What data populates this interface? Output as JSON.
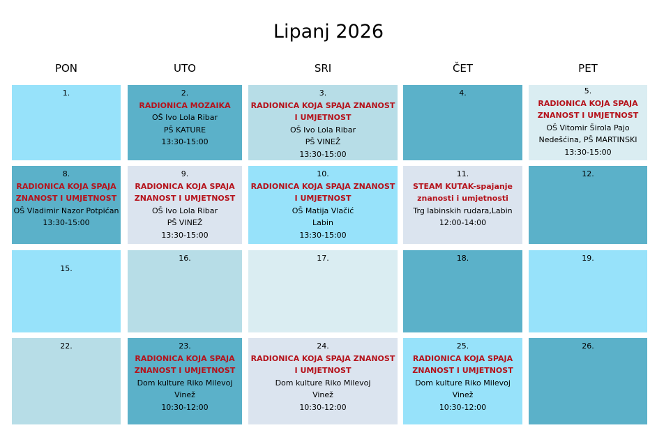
{
  "title": "Lipanj 2026",
  "colors": {
    "light_cyan": "#97e2fa",
    "teal": "#5bb1c9",
    "pale_blue": "#b7dde7",
    "lightest": "#daedf2",
    "gray_blue": "#dbe4ef",
    "event_title": "#b5121b"
  },
  "days": [
    "PON",
    "UTO",
    "SRI",
    "ČET",
    "PET"
  ],
  "weeks": [
    [
      {
        "num": "1.",
        "title": "",
        "lines": []
      },
      {
        "num": "2.",
        "title": "RADIONICA MOZAIKA",
        "lines": [
          "OŠ Ivo Lola Ribar",
          "PŠ KATURE",
          "13:30-15:00"
        ]
      },
      {
        "num": "3.",
        "title": "RADIONICA KOJA SPAJA ZNANOST I UMJETNOST",
        "lines": [
          "OŠ Ivo Lola Ribar",
          "PŠ VINEŽ",
          "13:30-15:00"
        ]
      },
      {
        "num": "4.",
        "title": "",
        "lines": []
      },
      {
        "num": "5.",
        "title": "RADIONICA KOJA SPAJA ZNANOST I UMJETNOST",
        "lines": [
          "OŠ Vitomir Širola Pajo Nedešćina, PŠ MARTINSKI",
          "13:30-15:00"
        ]
      }
    ],
    [
      {
        "num": "8.",
        "title": "RADIONICA KOJA SPAJA ZNANOST I UMJETNOST",
        "lines": [
          "OŠ Vladimir Nazor Potpićan",
          "13:30-15:00"
        ]
      },
      {
        "num": "9.",
        "title": "RADIONICA KOJA SPAJA ZNANOST I UMJETNOST",
        "lines": [
          "OŠ Ivo Lola Ribar",
          "PŠ VINEŽ",
          "13:30-15:00"
        ]
      },
      {
        "num": "10.",
        "title": "RADIONICA KOJA SPAJA ZNANOST I UMJETNOST",
        "lines": [
          "OŠ Matija Vlačić",
          "Labin",
          "13:30-15:00"
        ]
      },
      {
        "num": "11.",
        "title": "STEAM KUTAK-spajanje znanosti i umjetnosti",
        "lines": [
          "Trg labinskih rudara,Labin",
          "12:00-14:00"
        ]
      },
      {
        "num": "12.",
        "title": "",
        "lines": []
      }
    ],
    [
      {
        "num": "15.",
        "title": "",
        "lines": []
      },
      {
        "num": "16.",
        "title": "",
        "lines": []
      },
      {
        "num": "17.",
        "title": "",
        "lines": []
      },
      {
        "num": "18.",
        "title": "",
        "lines": []
      },
      {
        "num": "19.",
        "title": "",
        "lines": []
      }
    ],
    [
      {
        "num": "22.",
        "title": "",
        "lines": []
      },
      {
        "num": "23.",
        "title": "RADIONICA KOJA SPAJA ZNANOST I UMJETNOST",
        "lines": [
          "Dom kulture Riko Milevoj",
          "Vinež",
          "10:30-12:00"
        ]
      },
      {
        "num": "24.",
        "title": "RADIONICA KOJA SPAJA ZNANOST I UMJETNOST",
        "lines": [
          "Dom kulture Riko Milevoj",
          "Vinež",
          "10:30-12:00"
        ]
      },
      {
        "num": "25.",
        "title": "RADIONICA KOJA SPAJA ZNANOST I UMJETNOST",
        "lines": [
          "Dom kulture Riko Milevoj",
          "Vinež",
          "10:30-12:00"
        ]
      },
      {
        "num": "26.",
        "title": "",
        "lines": []
      }
    ]
  ]
}
